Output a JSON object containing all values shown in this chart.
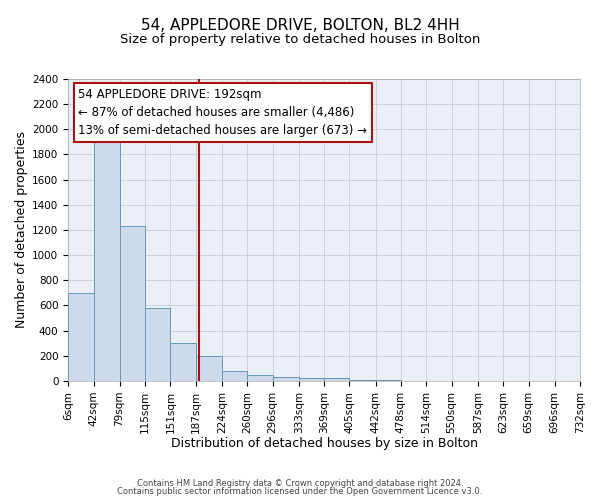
{
  "title": "54, APPLEDORE DRIVE, BOLTON, BL2 4HH",
  "subtitle": "Size of property relative to detached houses in Bolton",
  "xlabel": "Distribution of detached houses by size in Bolton",
  "ylabel": "Number of detached properties",
  "bar_color": "#ccdaeb",
  "bar_edge_color": "#6699bb",
  "grid_color": "#c5cdd8",
  "background_color": "#eaeff6",
  "vline_x": 192,
  "vline_color": "#aa1111",
  "bin_edges": [
    6,
    42,
    79,
    115,
    151,
    187,
    224,
    260,
    296,
    333,
    369,
    405,
    442,
    478,
    514,
    550,
    587,
    623,
    659,
    696,
    732
  ],
  "bar_heights": [
    700,
    1950,
    1230,
    580,
    300,
    200,
    80,
    50,
    30,
    20,
    20,
    5,
    5,
    0,
    0,
    0,
    0,
    0,
    0,
    0
  ],
  "ylim": [
    0,
    2400
  ],
  "yticks": [
    0,
    200,
    400,
    600,
    800,
    1000,
    1200,
    1400,
    1600,
    1800,
    2000,
    2200,
    2400
  ],
  "annotation_title": "54 APPLEDORE DRIVE: 192sqm",
  "annotation_line1": "← 87% of detached houses are smaller (4,486)",
  "annotation_line2": "13% of semi-detached houses are larger (673) →",
  "footer1": "Contains HM Land Registry data © Crown copyright and database right 2024.",
  "footer2": "Contains public sector information licensed under the Open Government Licence v3.0.",
  "title_fontsize": 11,
  "subtitle_fontsize": 9.5,
  "axis_label_fontsize": 9,
  "tick_fontsize": 7.5,
  "annotation_fontsize": 8.5,
  "footer_fontsize": 6
}
